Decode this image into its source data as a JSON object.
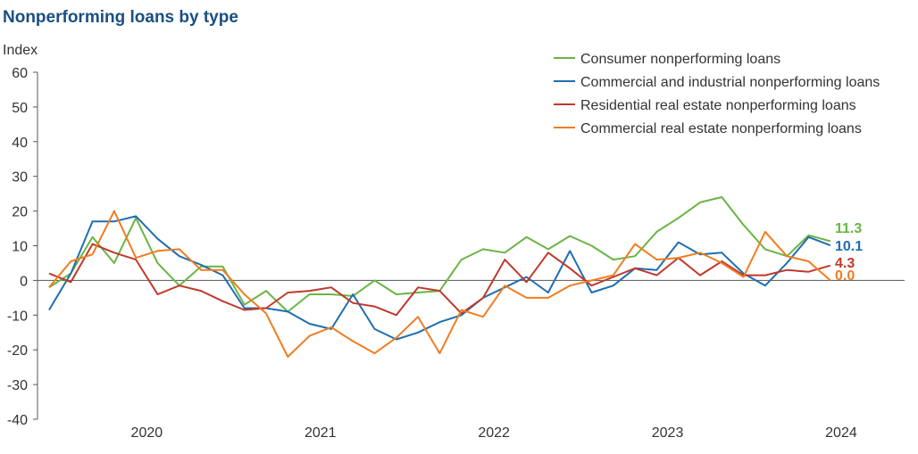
{
  "chart_data": {
    "type": "line",
    "title": "Nonperforming loans by type",
    "ylabel": "Index",
    "xlabel": "",
    "ylim": [
      -40,
      60
    ],
    "yticks": [
      60,
      50,
      40,
      30,
      20,
      10,
      0,
      -10,
      -20,
      -30,
      -40
    ],
    "x_tick_labels": [
      "2020",
      "2021",
      "2022",
      "2023",
      "2024"
    ],
    "x_tick_positions": [
      4.5,
      12.5,
      20.5,
      28.5,
      36.5
    ],
    "grid": false,
    "legend_position": "top-right",
    "series": [
      {
        "name": "Consumer nonperforming loans",
        "color": "#6ab544",
        "end_label": "11.3",
        "values": [
          -2,
          2,
          12.5,
          5,
          18,
          5,
          -1.5,
          4,
          4,
          -7,
          -3,
          -9,
          -4,
          -4,
          -4.5,
          0,
          -4,
          -3.5,
          -3,
          6,
          9,
          8,
          12.5,
          9,
          12.8,
          10,
          6,
          7,
          14,
          18,
          22.5,
          24,
          16,
          9,
          7,
          13,
          11.3
        ]
      },
      {
        "name": "Commercial and industrial nonperforming loans",
        "color": "#1f6eb0",
        "end_label": "10.1",
        "values": [
          -8.5,
          2,
          17,
          17,
          18.5,
          12,
          7,
          4.5,
          1.5,
          -8,
          -8,
          -9,
          -12.5,
          -14,
          -4,
          -14,
          -17,
          -15,
          -12,
          -10,
          -5,
          -2,
          1,
          -3.5,
          8.5,
          -3.5,
          -1.5,
          3.5,
          3,
          11,
          7.5,
          8,
          2,
          -1.5,
          5,
          12.5,
          10.1
        ]
      },
      {
        "name": "Residential real estate nonperforming loans",
        "color": "#c0392b",
        "end_label": "4.3",
        "values": [
          2,
          -0.5,
          10.5,
          8,
          6,
          -4,
          -1.5,
          -3,
          -6,
          -8.5,
          -8,
          -3.5,
          -3,
          -2,
          -6.5,
          -7.5,
          -10,
          -2,
          -3,
          -9.5,
          -5,
          6,
          -0.5,
          8,
          3.5,
          -1.5,
          1,
          3.5,
          1.5,
          6.5,
          1.5,
          5.5,
          1.5,
          1.5,
          3,
          2.5,
          4.3
        ]
      },
      {
        "name": "Commercial real estate nonperforming loans",
        "color": "#f07d21",
        "end_label": "0.0",
        "values": [
          -2,
          5.5,
          7.5,
          20,
          6.5,
          8.5,
          9,
          3,
          3,
          -4,
          -9.5,
          -22,
          -16,
          -13.5,
          -17.5,
          -21,
          -16.5,
          -10.5,
          -21,
          -8.5,
          -10.5,
          -1.5,
          -5,
          -5,
          -1.5,
          0,
          1.5,
          10.5,
          6,
          6.5,
          8,
          5,
          1,
          14,
          7,
          5.5,
          0
        ]
      }
    ]
  }
}
